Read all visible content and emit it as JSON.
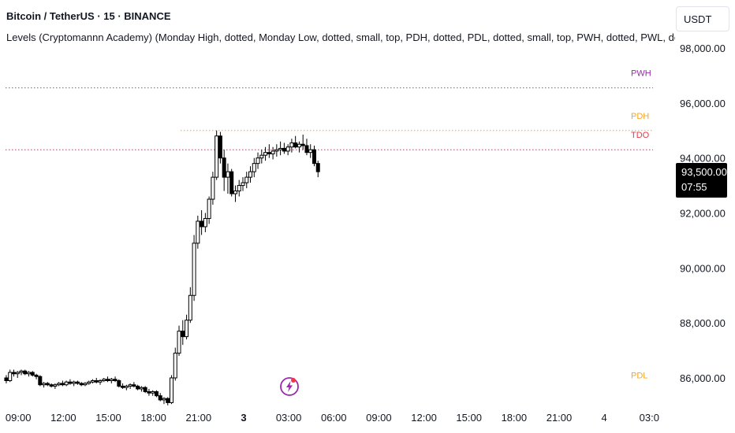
{
  "header": {
    "title": "Bitcoin / TetherUS · 15 · BINANCE",
    "indicator": "Levels (Cryptomannn Academy) (Monday High, dotted, Monday Low, dotted, small, top, PDH, dotted, PDL, dotted, small, top, PWH, dotted, PWL, dotted, small, top, PI"
  },
  "currency": "USDT",
  "last_price": {
    "price": "93,500.00",
    "countdown": "07:55"
  },
  "colors": {
    "bg": "#ffffff",
    "text": "#131722",
    "candle": "#000000",
    "pwh": "#9c27b0",
    "pdh": "#f5a623",
    "tdo": "#e5394a",
    "pdl": "#f5a623",
    "pwh_line": "#b0456c",
    "pdh_line": "#f5a623",
    "tdo_line": "#cc3355",
    "lightning": "#9c27b0",
    "lightning_dot": "#f23645"
  },
  "chart_data": {
    "type": "candlestick",
    "title": "Bitcoin / TetherUS · 15 · BINANCE",
    "y_ticks": [
      "98,000.00",
      "96,000.00",
      "94,000.00",
      "92,000.00",
      "90,000.00",
      "88,000.00",
      "86,000.00"
    ],
    "y_tick_values": [
      98000,
      96000,
      94000,
      92000,
      90000,
      88000,
      86000
    ],
    "ylim": [
      84800,
      99000
    ],
    "x_ticks": [
      "09:00",
      "12:00",
      "15:00",
      "18:00",
      "21:00",
      "3",
      "03:00",
      "06:00",
      "09:00",
      "12:00",
      "15:00",
      "18:00",
      "21:00",
      "4",
      "03:0"
    ],
    "x_tick_hours": [
      9,
      12,
      15,
      18,
      21,
      24,
      27,
      30,
      33,
      36,
      39,
      42,
      45,
      48,
      51
    ],
    "x_tick_bold": [
      false,
      false,
      false,
      false,
      false,
      true,
      false,
      false,
      false,
      false,
      false,
      false,
      false,
      false,
      false
    ],
    "xlim_hours": [
      8.15,
      52.0
    ],
    "levels": [
      {
        "label": "PWH",
        "value": 96550,
        "start_hour": 8.15,
        "color_key": "pwh",
        "line_key": "pwh_line"
      },
      {
        "label": "PDH",
        "value": 95000,
        "start_hour": 19.8,
        "color_key": "pdh",
        "line_key": "pdh_line"
      },
      {
        "label": "TDO",
        "value": 94300,
        "start_hour": 8.15,
        "color_key": "tdo",
        "line_key": "tdo_line"
      },
      {
        "label": "PDL",
        "value": 85550,
        "start_hour": 52.0,
        "color_key": "pdl",
        "line_key": "pdl_line"
      }
    ],
    "bar_interval_hours": 0.25,
    "candles_start_hour": 8.2,
    "candles": [
      [
        86000,
        86100,
        85800,
        85900
      ],
      [
        85900,
        86300,
        85850,
        86200
      ],
      [
        86200,
        86300,
        86050,
        86150
      ],
      [
        86150,
        86250,
        86000,
        86200
      ],
      [
        86200,
        86300,
        86100,
        86250
      ],
      [
        86250,
        86300,
        86100,
        86150
      ],
      [
        86150,
        86250,
        86050,
        86200
      ],
      [
        86200,
        86250,
        86050,
        86100
      ],
      [
        86100,
        86150,
        85950,
        86050
      ],
      [
        86050,
        86100,
        85700,
        85750
      ],
      [
        85750,
        85850,
        85650,
        85800
      ],
      [
        85800,
        85850,
        85700,
        85750
      ],
      [
        85750,
        85800,
        85650,
        85700
      ],
      [
        85700,
        85800,
        85600,
        85750
      ],
      [
        85750,
        85850,
        85700,
        85800
      ],
      [
        85800,
        85900,
        85700,
        85750
      ],
      [
        85750,
        85900,
        85700,
        85850
      ],
      [
        85850,
        85950,
        85750,
        85800
      ],
      [
        85800,
        85900,
        85700,
        85850
      ],
      [
        85850,
        85900,
        85750,
        85800
      ],
      [
        85800,
        85850,
        85700,
        85750
      ],
      [
        85750,
        85850,
        85700,
        85800
      ],
      [
        85800,
        85900,
        85750,
        85850
      ],
      [
        85850,
        85950,
        85800,
        85900
      ],
      [
        85900,
        86000,
        85800,
        85850
      ],
      [
        85850,
        85950,
        85750,
        85900
      ],
      [
        85900,
        86000,
        85850,
        85950
      ],
      [
        85950,
        86050,
        85850,
        85900
      ],
      [
        85900,
        86000,
        85800,
        85950
      ],
      [
        85950,
        86050,
        85850,
        85900
      ],
      [
        85900,
        85950,
        85650,
        85700
      ],
      [
        85700,
        85800,
        85600,
        85650
      ],
      [
        85650,
        85750,
        85550,
        85700
      ],
      [
        85700,
        85800,
        85600,
        85750
      ],
      [
        85750,
        85850,
        85650,
        85700
      ],
      [
        85700,
        85750,
        85550,
        85600
      ],
      [
        85600,
        85700,
        85500,
        85650
      ],
      [
        85650,
        85700,
        85450,
        85500
      ],
      [
        85500,
        85600,
        85350,
        85450
      ],
      [
        85450,
        85550,
        85350,
        85500
      ],
      [
        85500,
        85550,
        85300,
        85350
      ],
      [
        85350,
        85450,
        85150,
        85200
      ],
      [
        85200,
        85300,
        85050,
        85250
      ],
      [
        85250,
        85300,
        85000,
        85100
      ],
      [
        85100,
        86100,
        85050,
        86000
      ],
      [
        86000,
        87100,
        85900,
        86900
      ],
      [
        86900,
        87900,
        86800,
        87700
      ],
      [
        87700,
        88100,
        87200,
        87500
      ],
      [
        87500,
        88300,
        87400,
        88100
      ],
      [
        88100,
        89300,
        88000,
        89000
      ],
      [
        89000,
        91200,
        88800,
        90900
      ],
      [
        90900,
        91900,
        90700,
        91700
      ],
      [
        91700,
        92100,
        91200,
        91500
      ],
      [
        91500,
        92000,
        91300,
        91800
      ],
      [
        91800,
        92600,
        91600,
        92500
      ],
      [
        92500,
        93500,
        92300,
        93300
      ],
      [
        93300,
        95000,
        93200,
        94800
      ],
      [
        94800,
        94950,
        93800,
        94000
      ],
      [
        94000,
        94300,
        92800,
        93300
      ],
      [
        93300,
        93800,
        92700,
        93500
      ],
      [
        93500,
        93600,
        92600,
        92700
      ],
      [
        92700,
        93000,
        92400,
        92800
      ],
      [
        92800,
        93200,
        92600,
        93000
      ],
      [
        93000,
        93300,
        92800,
        93100
      ],
      [
        93100,
        93500,
        92900,
        93300
      ],
      [
        93300,
        93700,
        93100,
        93500
      ],
      [
        93500,
        94000,
        93300,
        93800
      ],
      [
        93800,
        94200,
        93600,
        94000
      ],
      [
        94000,
        94300,
        93800,
        94100
      ],
      [
        94100,
        94400,
        93900,
        94200
      ],
      [
        94200,
        94500,
        94000,
        94150
      ],
      [
        94150,
        94400,
        93950,
        94250
      ],
      [
        94250,
        94500,
        94050,
        94300
      ],
      [
        94300,
        94600,
        94100,
        94350
      ],
      [
        94350,
        94550,
        94150,
        94250
      ],
      [
        94250,
        94500,
        94100,
        94400
      ],
      [
        94400,
        94700,
        94200,
        94550
      ],
      [
        94550,
        94800,
        94350,
        94400
      ],
      [
        94400,
        94600,
        94200,
        94500
      ],
      [
        94500,
        94850,
        94300,
        94450
      ],
      [
        94450,
        94700,
        94100,
        94200
      ],
      [
        94200,
        94500,
        94000,
        94300
      ],
      [
        94300,
        94450,
        93700,
        93800
      ],
      [
        93800,
        93900,
        93300,
        93500
      ]
    ]
  }
}
